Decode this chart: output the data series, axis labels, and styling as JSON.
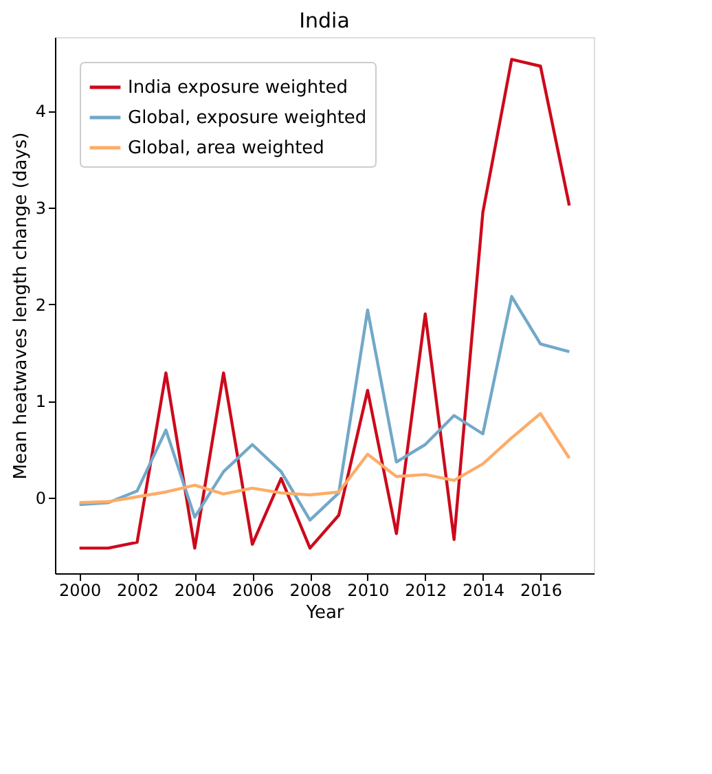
{
  "chart_data": {
    "type": "line",
    "title": "India",
    "xlabel": "Year",
    "ylabel": "Mean heatwaves length change (days)",
    "x": [
      2000,
      2001,
      2002,
      2003,
      2004,
      2005,
      2006,
      2007,
      2008,
      2009,
      2010,
      2011,
      2012,
      2013,
      2014,
      2015,
      2016,
      2017
    ],
    "series": [
      {
        "name": "India exposure weighted",
        "color": "#cc0a1c",
        "values": [
          -0.52,
          -0.52,
          -0.46,
          1.29,
          -0.52,
          1.29,
          -0.48,
          0.2,
          -0.52,
          -0.18,
          1.11,
          -0.37,
          1.9,
          -0.43,
          2.95,
          4.53,
          4.46,
          3.02
        ]
      },
      {
        "name": "Global, exposure weighted",
        "color": "#72a8c8",
        "values": [
          -0.07,
          -0.05,
          0.07,
          0.7,
          -0.2,
          0.27,
          0.55,
          0.27,
          -0.23,
          0.05,
          1.94,
          0.37,
          0.55,
          0.85,
          0.66,
          2.08,
          1.59,
          1.51
        ]
      },
      {
        "name": "Global, area weighted",
        "color": "#fdac68",
        "values": [
          -0.05,
          -0.04,
          0.01,
          0.06,
          0.13,
          0.04,
          0.1,
          0.05,
          0.03,
          0.06,
          0.45,
          0.22,
          0.24,
          0.18,
          0.35,
          0.62,
          0.87,
          0.41
        ]
      }
    ],
    "xlim": [
      1999.15,
      2017.85
    ],
    "xticks": [
      2000,
      2002,
      2004,
      2006,
      2008,
      2010,
      2012,
      2014,
      2016
    ],
    "ylim": [
      -0.78,
      4.76
    ],
    "yticks": [
      0,
      1,
      2,
      3,
      4
    ],
    "grid": false,
    "legend": "top left",
    "line_style": "solid",
    "marker": "none"
  }
}
